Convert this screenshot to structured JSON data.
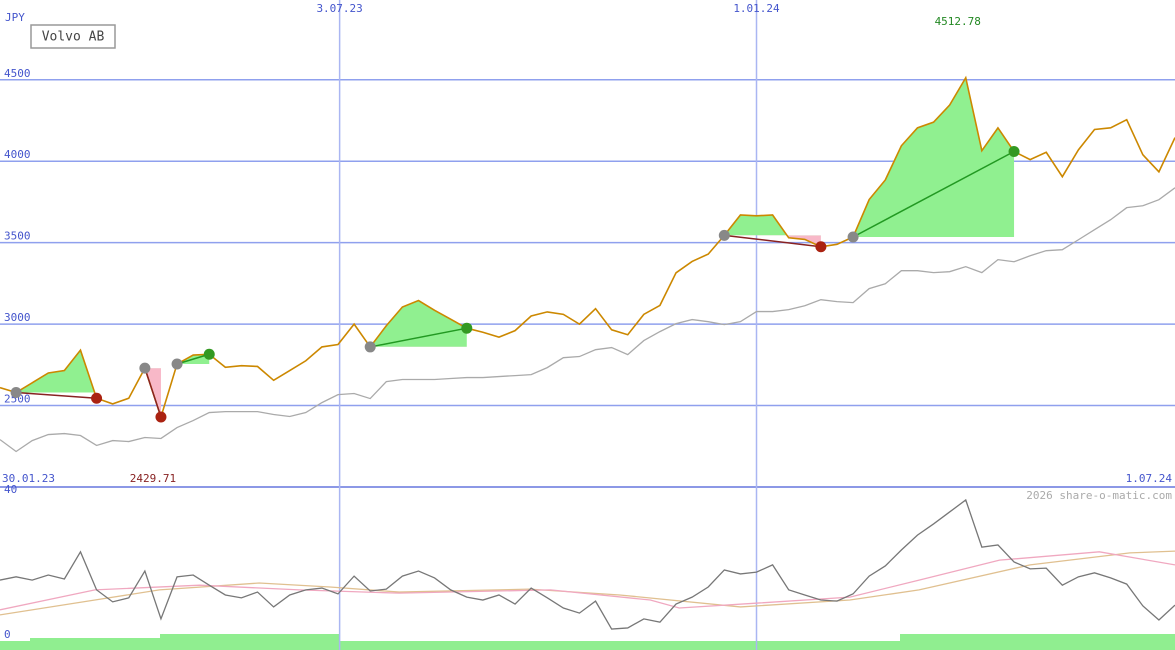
{
  "header": {
    "currency": "JPY",
    "title": "Volvo AB",
    "watermark": "2026 share-o-matic.com"
  },
  "chart_data": [
    {
      "type": "line",
      "xlim": [
        0,
        73
      ],
      "xticks": [
        {
          "value": 0,
          "label": "30.01.23"
        },
        {
          "value": 21.1,
          "label": "3.07.23"
        },
        {
          "value": 47.0,
          "label": "1.01.24"
        },
        {
          "value": 73,
          "label": "1.07.24"
        }
      ],
      "ylim": [
        2000,
        4990
      ],
      "yticks": [
        2500,
        3000,
        3500,
        4000,
        4500
      ],
      "grid": true,
      "series": [
        {
          "color": "#cc8800",
          "values": [
            2610,
            2580,
            2640,
            2700,
            2715,
            2840,
            2545,
            2510,
            2545,
            2730,
            2429.71,
            2755,
            2810,
            2815,
            2735,
            2745,
            2740,
            2655,
            2715,
            2775,
            2860,
            2875,
            3000,
            2860,
            2990,
            3105,
            3145,
            3085,
            3030,
            2975,
            2950,
            2920,
            2960,
            3050,
            3075,
            3060,
            3000,
            3095,
            2965,
            2935,
            3060,
            3115,
            3315,
            3385,
            3430,
            3545,
            3670,
            3665,
            3670,
            3530,
            3520,
            3475,
            3490,
            3535,
            3765,
            3885,
            4095,
            4205,
            4240,
            4345,
            4512.78,
            4065,
            4205,
            4060,
            4010,
            4055,
            3905,
            4070,
            4195,
            4205,
            4255,
            4040,
            3935,
            4145
          ]
        },
        {
          "color": "#aaaaaa",
          "values": [
            2291,
            2218,
            2285,
            2322,
            2328,
            2316,
            2255,
            2285,
            2279,
            2304,
            2298,
            2365,
            2408,
            2457,
            2463,
            2463,
            2463,
            2445,
            2433,
            2457,
            2518,
            2567,
            2574,
            2543,
            2647,
            2660,
            2660,
            2660,
            2666,
            2672,
            2672,
            2678,
            2684,
            2690,
            2733,
            2794,
            2801,
            2843,
            2856,
            2813,
            2899,
            2954,
            3003,
            3028,
            3015,
            2997,
            3015,
            3077,
            3077,
            3089,
            3113,
            3150,
            3138,
            3132,
            3218,
            3248,
            3328,
            3328,
            3316,
            3322,
            3353,
            3316,
            3396,
            3383,
            3420,
            3451,
            3457,
            3518,
            3580,
            3641,
            3715,
            3727,
            3764,
            3837
          ]
        }
      ],
      "signals": [
        {
          "entry": 1,
          "exit": 6
        },
        {
          "entry": 9,
          "exit": 10
        },
        {
          "entry": 11,
          "exit": 13
        },
        {
          "entry": 23,
          "exit": 29
        },
        {
          "entry": 45,
          "exit": 51
        },
        {
          "entry": 53,
          "exit": 63
        }
      ],
      "annotations": [
        {
          "text": "4512.78",
          "color": "#228822",
          "at": "max"
        },
        {
          "text": "2429.71",
          "color": "#882222",
          "at": "min"
        }
      ]
    },
    {
      "type": "line",
      "xlim": [
        0,
        73
      ],
      "ylim": [
        0,
        40
      ],
      "yticks": [
        0,
        40
      ],
      "series": [
        {
          "color": "#777777",
          "values": [
            16.8,
            17.7,
            16.8,
            18.2,
            17.1,
            24.6,
            14.1,
            10.8,
            11.9,
            19.3,
            6.1,
            17.7,
            18.2,
            15.4,
            12.7,
            11.9,
            13.5,
            9.4,
            12.7,
            14.1,
            14.6,
            13.0,
            17.9,
            13.8,
            14.3,
            17.9,
            19.3,
            17.4,
            14.1,
            12.1,
            11.3,
            12.7,
            10.2,
            14.6,
            11.9,
            9.1,
            7.7,
            11.0,
            3.3,
            3.6,
            6.1,
            5.2,
            10.2,
            12.1,
            14.9,
            19.6,
            18.5,
            19.0,
            21.0,
            14.1,
            12.7,
            11.3,
            11.0,
            13.0,
            17.9,
            20.7,
            25.1,
            29.2,
            32.3,
            35.6,
            38.9,
            25.9,
            26.5,
            21.8,
            19.9,
            20.1,
            15.4,
            17.7,
            18.8,
            17.4,
            15.7,
            9.7,
            5.8,
            9.9
          ]
        },
        {
          "color": "#f0a8c0",
          "x": [
            0,
            5.9,
            12.4,
            18.6,
            24.8,
            34.2,
            40.4,
            42.2,
            47.2,
            52.8,
            57.1,
            62.1,
            68.3,
            73
          ],
          "values": [
            8.6,
            14.1,
            15.4,
            14.1,
            13.2,
            14.1,
            11.3,
            9.1,
            10.5,
            12.1,
            16.8,
            22.3,
            24.6,
            21.0
          ]
        },
        {
          "color": "#e0c090",
          "x": [
            0,
            5.9,
            9.9,
            16.1,
            20.5,
            24.8,
            32.9,
            38.5,
            46,
            52.8,
            57.1,
            64,
            70.2,
            73
          ],
          "values": [
            7.2,
            11.3,
            14.1,
            16.0,
            14.9,
            13.5,
            14.3,
            12.7,
            9.4,
            11.3,
            14.1,
            21.0,
            24.3,
            24.8
          ]
        }
      ]
    }
  ]
}
